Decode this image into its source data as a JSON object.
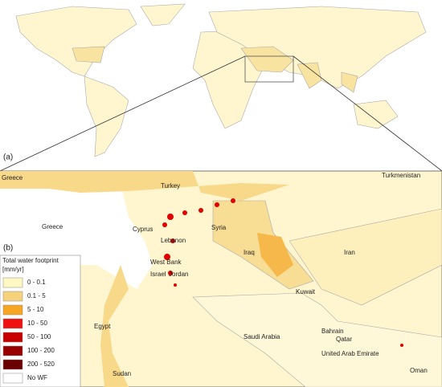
{
  "panels": {
    "a": "(a)",
    "b": "(b)"
  },
  "labels": [
    "Greece",
    "Turkey",
    "Turkmenistan",
    "Greece",
    "Cyprus",
    "Syria",
    "Lebanon",
    "Iran",
    "Iraq",
    "West Bank",
    "Israel",
    "Jordan",
    "Kuwait",
    "Egypt",
    "Bahrain",
    "Qatar",
    "Saudi Arabia",
    "United Arab Emirate",
    "Oman",
    "Sudan"
  ],
  "legend": {
    "title": "Total water footprint",
    "unit": "[mm/yr]",
    "items": [
      {
        "label": "0 - 0.1",
        "color": "#fff8c4"
      },
      {
        "label": "0.1 - 5",
        "color": "#f6d27c"
      },
      {
        "label": "5 - 10",
        "color": "#f6a623"
      },
      {
        "label": "10 - 50",
        "color": "#f01010"
      },
      {
        "label": "50 - 100",
        "color": "#c80000"
      },
      {
        "label": "100 - 200",
        "color": "#980000"
      },
      {
        "label": "200 - 520",
        "color": "#6a0000"
      },
      {
        "label": "No WF",
        "color": "#ffffff"
      }
    ]
  }
}
